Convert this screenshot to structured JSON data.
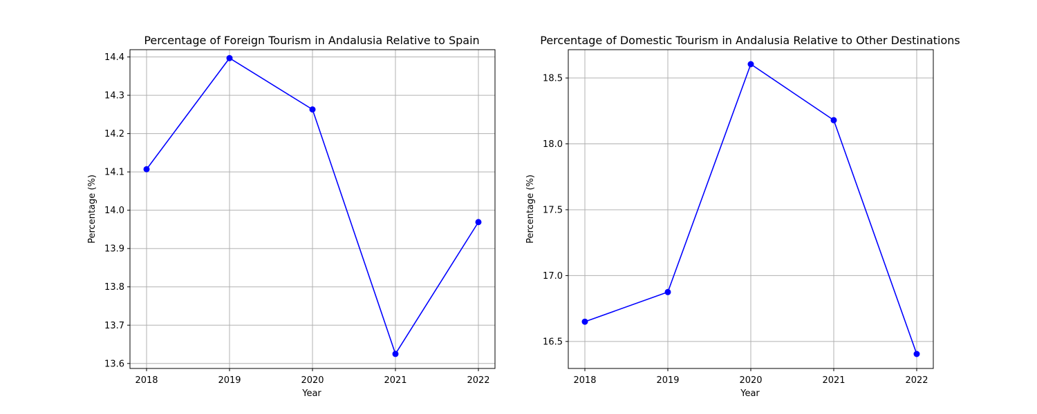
{
  "chart_data": [
    {
      "type": "line",
      "title": "Percentage of Foreign Tourism in Andalusia Relative to Spain",
      "xlabel": "Year",
      "ylabel": "Percentage (%)",
      "x": [
        "2018",
        "2019",
        "2020",
        "2021",
        "2022"
      ],
      "series": [
        {
          "values": [
            14.107,
            14.397,
            14.263,
            13.625,
            13.969
          ],
          "color": "#0000ff",
          "marker": "circle"
        }
      ],
      "xlim": [
        2017.8,
        2022.2
      ],
      "ylim": [
        13.587,
        14.419
      ],
      "yticks": [
        "13.6",
        "13.7",
        "13.8",
        "13.9",
        "14.0",
        "14.1",
        "14.2",
        "14.3",
        "14.4"
      ],
      "grid": true,
      "legend": "none"
    },
    {
      "type": "line",
      "title": "Percentage of Domestic Tourism in Andalusia Relative to Other Destinations",
      "xlabel": "Year",
      "ylabel": "Percentage (%)",
      "x": [
        "2018",
        "2019",
        "2020",
        "2021",
        "2022"
      ],
      "series": [
        {
          "values": [
            16.65,
            16.875,
            18.605,
            18.18,
            16.405
          ],
          "color": "#0000ff",
          "marker": "circle"
        }
      ],
      "xlim": [
        2017.8,
        2022.2
      ],
      "ylim": [
        16.295,
        18.715
      ],
      "yticks": [
        "16.5",
        "17.0",
        "17.5",
        "18.0",
        "18.5"
      ],
      "grid": true,
      "legend": "none"
    }
  ]
}
